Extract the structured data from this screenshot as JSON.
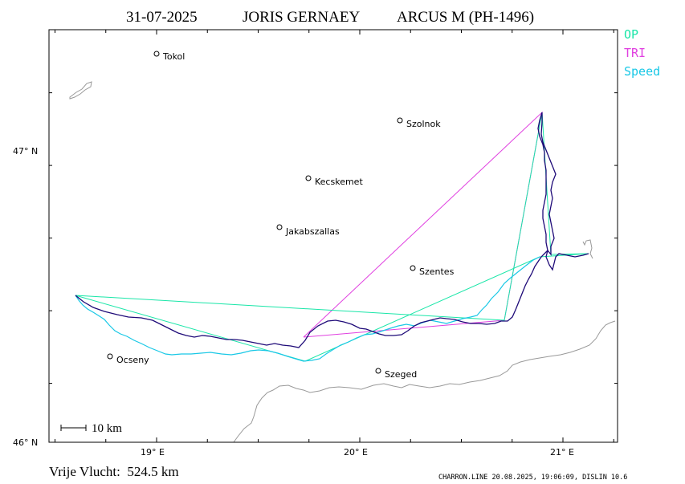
{
  "header": {
    "date": "31-07-2025",
    "pilot": "JORIS GERNAEY",
    "glider": "ARCUS M (PH-1496)"
  },
  "legend": [
    {
      "label": "OP",
      "color": "#19e6a8"
    },
    {
      "label": "TRI",
      "color": "#e040e0"
    },
    {
      "label": "Speed",
      "color": "#19c8e6"
    }
  ],
  "axes": {
    "x_ticks": [
      {
        "label": "19° E",
        "lon": 19.0
      },
      {
        "label": "20° E",
        "lon": 20.0
      },
      {
        "label": "21° E",
        "lon": 21.0
      }
    ],
    "y_ticks": [
      {
        "label": "47° N",
        "lat": 47.0
      },
      {
        "label": "46° N",
        "lat": 46.0
      }
    ]
  },
  "towns": [
    {
      "name": "Tokol",
      "lon": 19.0,
      "lat": 47.33
    },
    {
      "name": "Szolnok",
      "lon": 20.21,
      "lat": 47.1
    },
    {
      "name": "Kecskemet",
      "lon": 19.76,
      "lat": 46.9
    },
    {
      "name": "Jakabszallas",
      "lon": 19.61,
      "lat": 46.74
    },
    {
      "name": "Szentes",
      "lon": 20.28,
      "lat": 46.6
    },
    {
      "name": "Ocseny",
      "lon": 18.77,
      "lat": 46.3
    },
    {
      "name": "Szeged",
      "lon": 20.11,
      "lat": 46.24
    }
  ],
  "scale_bar": {
    "label": "10 km"
  },
  "footer": {
    "distance": "Vrije Vlucht:  524.5 km",
    "credit": "CHARRON.LINE 20.08.2025, 19:06:09, DISLIN 10.6"
  },
  "colors": {
    "track": "#1e0a78",
    "op": "#19e6a8",
    "tri": "#e040e0",
    "speed": "#19c8e6",
    "border": "#999999"
  }
}
